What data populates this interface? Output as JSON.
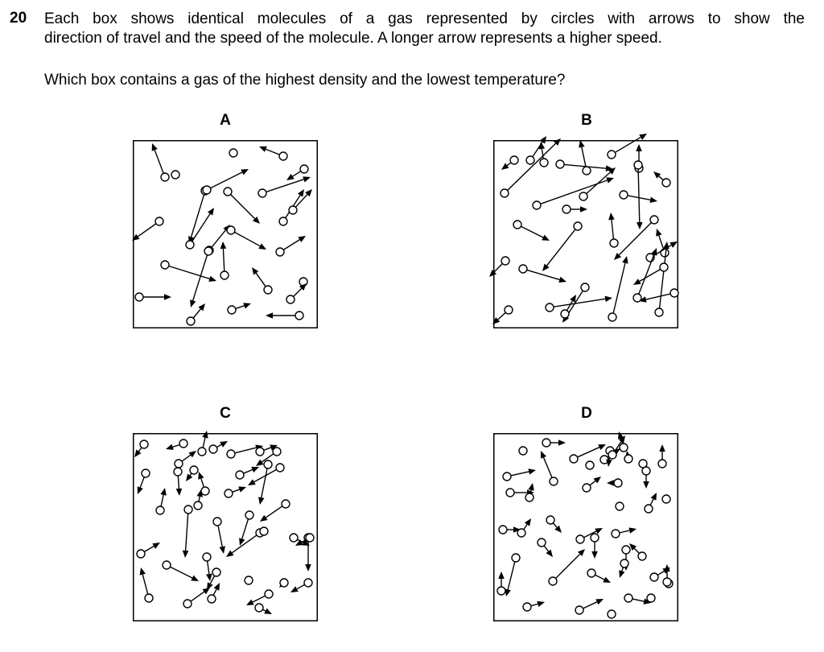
{
  "question": {
    "number": "20",
    "line1": "Each box shows identical molecules of a gas represented by circles with arrows to show the",
    "line2": "direction of travel and the speed of the molecule. A longer arrow represents a higher speed.",
    "prompt": "Which box contains a gas of the highest density and the lowest temperature?"
  },
  "boxes": [
    {
      "label": "A"
    },
    {
      "label": "B"
    },
    {
      "label": "C"
    },
    {
      "label": "D"
    }
  ]
}
